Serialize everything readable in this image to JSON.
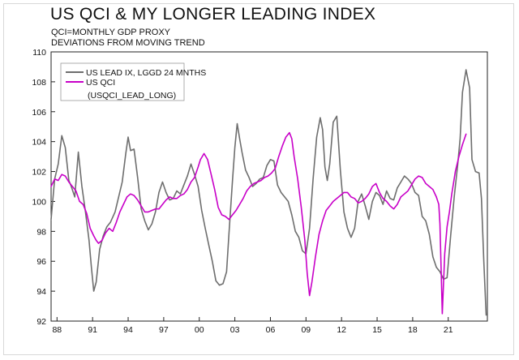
{
  "chart_data": {
    "type": "line",
    "title": "US QCI & MY LONGER LEADING INDEX",
    "subtitle_lines": [
      "QCI=MONTHLY GDP PROXY",
      "DEVIATIONS FROM MOVING TREND"
    ],
    "xlabel": "",
    "ylabel": "",
    "xlim": [
      1987.5,
      2024.3
    ],
    "ylim": [
      92,
      110
    ],
    "x_ticks": [
      1988,
      1991,
      1994,
      1997,
      2000,
      2003,
      2006,
      2009,
      2012,
      2015,
      2018,
      2021
    ],
    "x_tick_labels": [
      "88",
      "91",
      "94",
      "97",
      "00",
      "03",
      "06",
      "09",
      "12",
      "15",
      "18",
      "21"
    ],
    "y_ticks": [
      92,
      94,
      96,
      98,
      100,
      102,
      104,
      106,
      108,
      110
    ],
    "legend": {
      "position": "top-left",
      "entries": [
        "US LEAD IX, LGGD 24 MNTHS",
        "US QCI"
      ],
      "note": "(USQCI_LEAD_LONG)"
    },
    "series": [
      {
        "name": "US LEAD IX, LGGD 24 MNTHS",
        "color": "#6e6e6e",
        "x": [
          1987.5,
          1987.8,
          1988.1,
          1988.4,
          1988.7,
          1989.0,
          1989.2,
          1989.5,
          1989.8,
          1990.1,
          1990.4,
          1990.7,
          1990.9,
          1991.1,
          1991.3,
          1991.6,
          1991.9,
          1992.2,
          1992.5,
          1992.9,
          1993.2,
          1993.5,
          1993.8,
          1994.0,
          1994.2,
          1994.5,
          1994.8,
          1995.1,
          1995.4,
          1995.7,
          1996.0,
          1996.3,
          1996.6,
          1996.9,
          1997.2,
          1997.5,
          1997.8,
          1998.1,
          1998.4,
          1998.7,
          1999.0,
          1999.3,
          1999.6,
          1999.9,
          2000.2,
          2000.5,
          2000.8,
          2001.1,
          2001.4,
          2001.7,
          2002.0,
          2002.3,
          2002.5,
          2002.8,
          2003.0,
          2003.2,
          2003.4,
          2003.6,
          2003.9,
          2004.2,
          2004.5,
          2004.8,
          2005.1,
          2005.4,
          2005.7,
          2006.0,
          2006.3,
          2006.6,
          2006.9,
          2007.2,
          2007.5,
          2007.8,
          2008.1,
          2008.4,
          2008.7,
          2009.0,
          2009.3,
          2009.6,
          2009.9,
          2010.2,
          2010.4,
          2010.6,
          2010.8,
          2011.0,
          2011.3,
          2011.6,
          2011.9,
          2012.2,
          2012.5,
          2012.8,
          2013.1,
          2013.4,
          2013.7,
          2014.0,
          2014.3,
          2014.6,
          2014.9,
          2015.2,
          2015.5,
          2015.8,
          2016.1,
          2016.4,
          2016.7,
          2017.0,
          2017.3,
          2017.6,
          2017.9,
          2018.2,
          2018.5,
          2018.8,
          2019.1,
          2019.4,
          2019.7,
          2020.0,
          2020.3,
          2020.6,
          2020.9,
          2021.2,
          2021.5,
          2021.8,
          2022.0,
          2022.2,
          2022.5,
          2022.8,
          2023.0,
          2023.3,
          2023.6,
          2023.8,
          2024.0,
          2024.2
        ],
        "values": [
          98.8,
          101.5,
          102.5,
          104.4,
          103.6,
          101.4,
          101.0,
          100.3,
          103.3,
          101.0,
          99.3,
          97.4,
          95.6,
          94.0,
          94.6,
          96.8,
          97.7,
          98.3,
          98.6,
          99.3,
          100.3,
          101.3,
          103.2,
          104.3,
          103.4,
          103.5,
          101.6,
          99.5,
          98.7,
          98.1,
          98.5,
          99.3,
          100.6,
          101.3,
          100.6,
          100.1,
          100.2,
          100.7,
          100.5,
          101.1,
          101.7,
          102.5,
          101.8,
          101.0,
          99.4,
          98.2,
          97.1,
          96.0,
          94.7,
          94.4,
          94.5,
          95.3,
          97.8,
          101.4,
          103.6,
          105.2,
          104.2,
          103.3,
          102.1,
          101.6,
          101.0,
          101.2,
          101.5,
          101.6,
          102.4,
          102.8,
          102.7,
          101.1,
          100.6,
          100.3,
          100.0,
          99.1,
          98.0,
          97.6,
          96.7,
          96.5,
          98.2,
          101.5,
          104.3,
          105.6,
          104.8,
          102.3,
          101.4,
          102.5,
          105.3,
          105.7,
          102.1,
          99.3,
          98.2,
          97.6,
          98.2,
          100.0,
          100.5,
          99.7,
          98.8,
          100.0,
          100.6,
          100.4,
          99.8,
          100.7,
          100.2,
          100.1,
          100.9,
          101.3,
          101.7,
          101.5,
          101.2,
          100.6,
          100.4,
          99.0,
          98.7,
          97.8,
          96.3,
          95.6,
          95.3,
          94.8,
          94.9,
          97.7,
          100.3,
          102.5,
          104.2,
          107.3,
          108.8,
          107.6,
          102.8,
          102.0,
          101.9,
          100.2,
          96.0,
          92.4
        ]
      },
      {
        "name": "US QCI",
        "color": "#c800c8",
        "x": [
          1987.5,
          1987.8,
          1988.1,
          1988.4,
          1988.7,
          1989.0,
          1989.3,
          1989.6,
          1989.9,
          1990.2,
          1990.5,
          1990.8,
          1991.1,
          1991.3,
          1991.5,
          1991.8,
          1992.1,
          1992.4,
          1992.7,
          1993.0,
          1993.3,
          1993.6,
          1993.9,
          1994.2,
          1994.5,
          1994.8,
          1995.1,
          1995.4,
          1995.7,
          1996.0,
          1996.3,
          1996.6,
          1996.9,
          1997.2,
          1997.5,
          1997.8,
          1998.1,
          1998.4,
          1998.7,
          1999.0,
          1999.3,
          1999.6,
          1999.9,
          2000.1,
          2000.4,
          2000.7,
          2001.0,
          2001.3,
          2001.6,
          2001.9,
          2002.2,
          2002.5,
          2002.8,
          2003.1,
          2003.4,
          2003.7,
          2004.0,
          2004.3,
          2004.6,
          2004.9,
          2005.2,
          2005.5,
          2005.8,
          2006.1,
          2006.4,
          2006.7,
          2007.0,
          2007.3,
          2007.6,
          2007.8,
          2008.0,
          2008.3,
          2008.6,
          2008.9,
          2009.1,
          2009.3,
          2009.5,
          2009.8,
          2010.1,
          2010.4,
          2010.7,
          2011.0,
          2011.3,
          2011.6,
          2011.9,
          2012.2,
          2012.5,
          2012.8,
          2013.1,
          2013.4,
          2013.7,
          2014.0,
          2014.3,
          2014.6,
          2014.9,
          2015.2,
          2015.5,
          2015.8,
          2016.1,
          2016.4,
          2016.7,
          2017.0,
          2017.3,
          2017.6,
          2017.9,
          2018.2,
          2018.5,
          2018.8,
          2019.1,
          2019.4,
          2019.7,
          2020.0,
          2020.2,
          2020.3,
          2020.5,
          2020.7,
          2020.9,
          2021.1,
          2021.3,
          2021.6,
          2021.9,
          2022.2,
          2022.5
        ],
        "values": [
          101.0,
          101.5,
          101.4,
          101.8,
          101.7,
          101.3,
          101.0,
          100.7,
          100.0,
          99.8,
          99.2,
          98.2,
          97.7,
          97.4,
          97.2,
          97.4,
          97.9,
          98.2,
          98.0,
          98.6,
          99.3,
          99.8,
          100.3,
          100.5,
          100.4,
          100.1,
          99.7,
          99.3,
          99.3,
          99.4,
          99.5,
          99.5,
          99.8,
          100.1,
          100.3,
          100.2,
          100.2,
          100.4,
          100.5,
          100.8,
          101.3,
          101.6,
          102.3,
          102.8,
          103.2,
          102.8,
          101.8,
          100.8,
          99.6,
          99.1,
          99.0,
          98.8,
          99.1,
          99.4,
          99.8,
          100.2,
          100.7,
          101.0,
          101.2,
          101.3,
          101.4,
          101.6,
          101.7,
          101.9,
          102.2,
          103.0,
          103.7,
          104.3,
          104.6,
          104.2,
          103.0,
          101.5,
          99.6,
          97.4,
          95.2,
          93.7,
          94.6,
          96.3,
          97.8,
          98.7,
          99.4,
          99.7,
          100.0,
          100.2,
          100.4,
          100.6,
          100.6,
          100.3,
          100.2,
          99.9,
          100.0,
          100.2,
          100.5,
          101.0,
          101.2,
          100.6,
          100.2,
          100.0,
          99.7,
          99.5,
          99.8,
          100.3,
          100.5,
          100.7,
          101.1,
          101.5,
          101.7,
          101.6,
          101.2,
          101.0,
          100.8,
          100.3,
          99.8,
          98.5,
          92.5,
          96.5,
          98.3,
          99.3,
          100.5,
          102.0,
          103.0,
          103.8,
          104.5
        ]
      }
    ]
  }
}
